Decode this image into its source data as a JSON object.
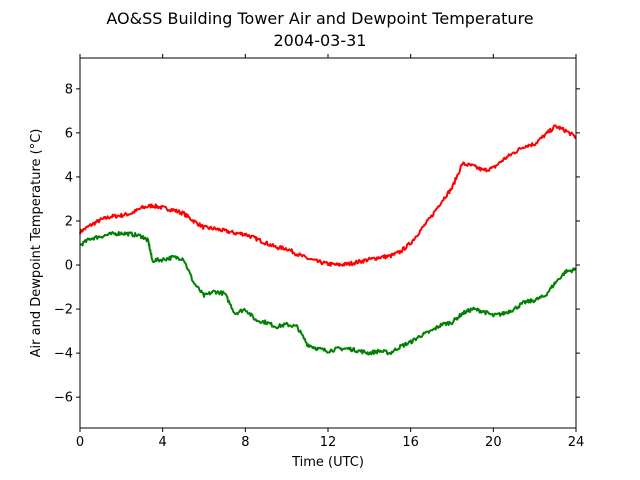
{
  "chart_data": {
    "type": "line",
    "title": "AO&SS Building Tower Air and Dewpoint Temperature",
    "subtitle": "2004-03-31",
    "xlabel": "Time (UTC)",
    "ylabel": "Air and Dewpoint Temperature (°C)",
    "xlim": [
      0,
      24
    ],
    "ylim": [
      -7.4,
      9.4
    ],
    "xticks": [
      0,
      4,
      8,
      12,
      16,
      20,
      24
    ],
    "yticks": [
      -6,
      -4,
      -2,
      0,
      2,
      4,
      6,
      8
    ],
    "grid": false,
    "legend": "none",
    "series": [
      {
        "color": "#ff0000",
        "x": [
          0,
          0.5,
          1,
          1.5,
          2,
          2.5,
          3,
          3.5,
          4,
          4.5,
          5,
          5.5,
          6,
          6.5,
          7,
          7.5,
          8,
          8.5,
          9,
          9.5,
          10,
          10.5,
          11,
          11.5,
          12,
          12.5,
          13,
          13.5,
          14,
          14.5,
          15,
          15.5,
          16,
          16.5,
          17,
          17.5,
          18,
          18.5,
          19,
          19.5,
          20,
          20.5,
          21,
          21.5,
          22,
          22.5,
          23,
          23.5,
          24
        ],
        "values": [
          1.5,
          1.8,
          2.05,
          2.2,
          2.25,
          2.35,
          2.6,
          2.7,
          2.6,
          2.5,
          2.35,
          2.0,
          1.7,
          1.65,
          1.55,
          1.45,
          1.4,
          1.2,
          1.0,
          0.8,
          0.75,
          0.5,
          0.3,
          0.15,
          0.05,
          0.0,
          0.05,
          0.15,
          0.25,
          0.35,
          0.4,
          0.6,
          1.0,
          1.6,
          2.2,
          2.9,
          3.5,
          4.6,
          4.5,
          4.3,
          4.4,
          4.8,
          5.1,
          5.4,
          5.5,
          5.9,
          6.3,
          6.1,
          5.8
        ]
      },
      {
        "color": "#008000",
        "x": [
          0,
          0.5,
          1,
          1.5,
          2,
          2.5,
          3,
          3.3,
          3.5,
          4,
          4.5,
          5,
          5.5,
          6,
          6.5,
          7,
          7.5,
          8,
          8.5,
          9,
          9.5,
          10,
          10.5,
          11,
          11.5,
          12,
          12.5,
          13,
          13.5,
          14,
          14.5,
          15,
          15.5,
          16,
          16.5,
          17,
          17.5,
          18,
          18.5,
          19,
          19.5,
          20,
          20.5,
          21,
          21.5,
          22,
          22.5,
          23,
          23.5,
          24
        ],
        "values": [
          0.9,
          1.2,
          1.3,
          1.4,
          1.45,
          1.4,
          1.3,
          1.1,
          0.2,
          0.25,
          0.35,
          0.3,
          -0.8,
          -1.4,
          -1.2,
          -1.3,
          -2.2,
          -2.0,
          -2.5,
          -2.6,
          -2.8,
          -2.7,
          -2.8,
          -3.6,
          -3.8,
          -3.9,
          -3.8,
          -3.8,
          -3.9,
          -4.0,
          -3.9,
          -4.0,
          -3.7,
          -3.5,
          -3.2,
          -3.0,
          -2.7,
          -2.6,
          -2.2,
          -2.0,
          -2.1,
          -2.3,
          -2.2,
          -2.0,
          -1.7,
          -1.6,
          -1.4,
          -0.8,
          -0.3,
          -0.2
        ]
      }
    ]
  }
}
